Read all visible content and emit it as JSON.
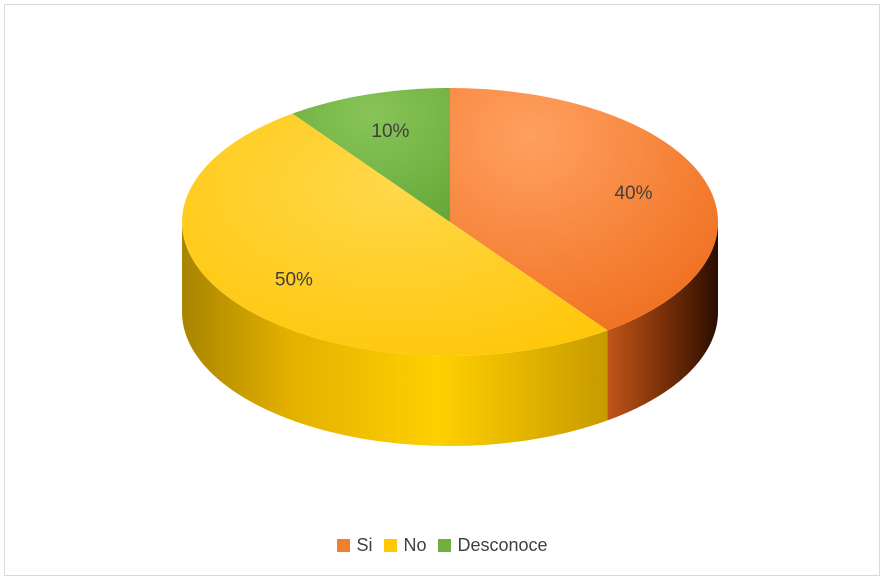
{
  "chart_data": {
    "type": "pie",
    "style": "3d",
    "title": "",
    "categories": [
      "Si",
      "No",
      "Desconoce"
    ],
    "values": [
      40,
      50,
      10
    ],
    "labels": [
      "40%",
      "50%",
      "10%"
    ],
    "colors": [
      "#F07F30",
      "#FFC800",
      "#70B040"
    ],
    "legend_position": "bottom"
  }
}
